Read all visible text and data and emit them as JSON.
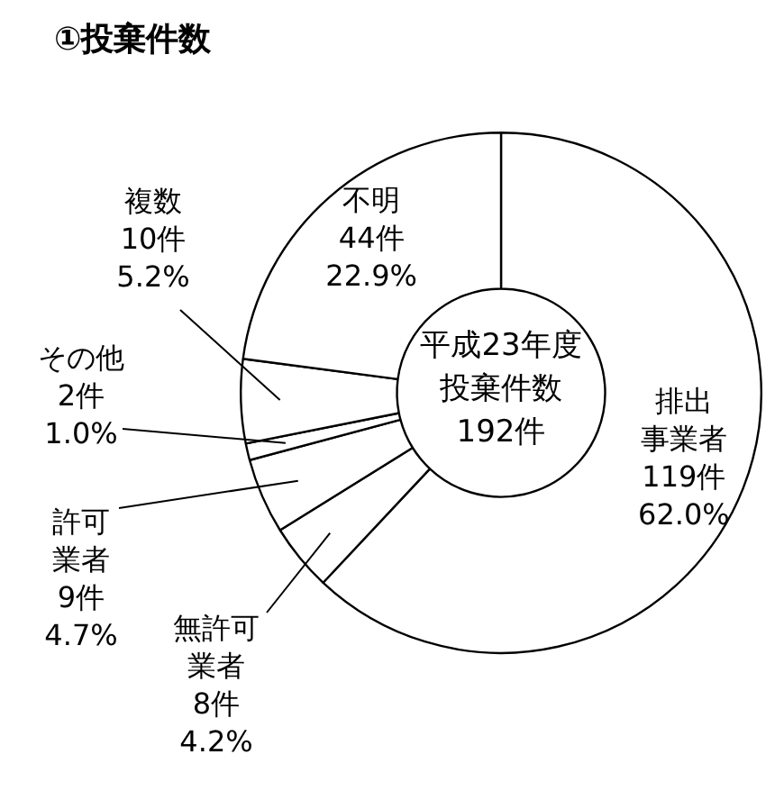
{
  "chart_data": {
    "type": "donut",
    "title": "①投棄件数",
    "categories": [
      "排出事業者",
      "無許可業者",
      "許可業者",
      "その他",
      "複数",
      "不明"
    ],
    "values": [
      119,
      8,
      9,
      2,
      10,
      44
    ],
    "value_labels": [
      "119件\n62.0%",
      "8件\n4.2%",
      "9件\n4.7%",
      "2件\n1.0%",
      "10件\n5.2%",
      "44件\n22.9%"
    ],
    "colors": [
      "#ffffff",
      "#ffffff",
      "#ffffff",
      "#ffffff",
      "#ffffff",
      "#ffffff"
    ],
    "annotations": [
      "平成23年度投棄件数192件"
    ],
    "legend": false
  }
}
